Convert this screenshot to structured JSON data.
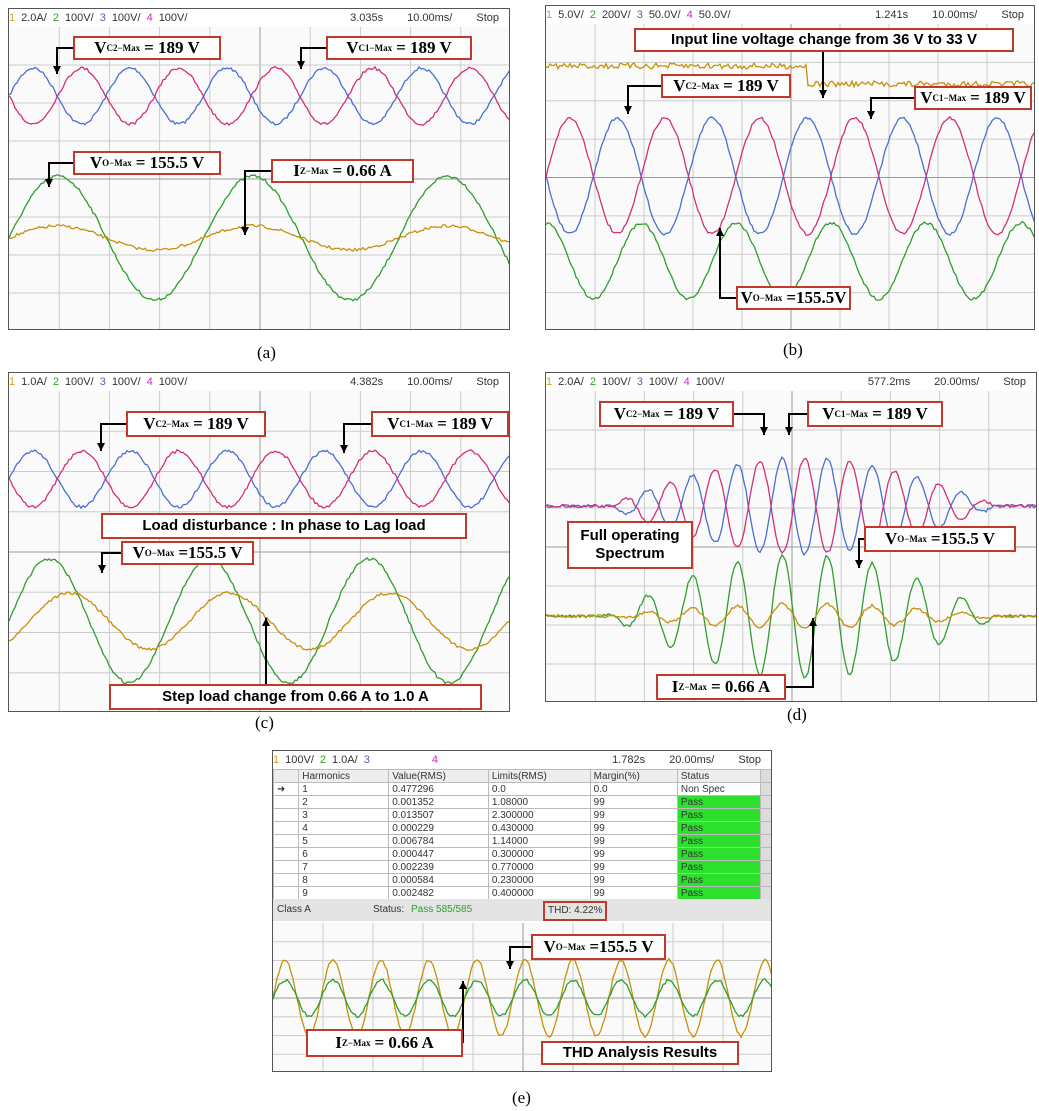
{
  "panels": [
    {
      "caption": "(a)",
      "header": {
        "channels": [
          {
            "number": "1",
            "setting": "2.0A/"
          },
          {
            "number": "2",
            "setting": "100V/"
          },
          {
            "number": "3",
            "setting": "100V/"
          },
          {
            "number": "4",
            "setting": "100V/"
          }
        ],
        "time": "3.035s",
        "timebase": "10.00ms/",
        "state": "Stop"
      },
      "annotations": [
        {
          "base": "V",
          "sub": "C2−Max",
          "text": "= 189 V"
        },
        {
          "base": "V",
          "sub": "C1−Max",
          "text": "= 189 V"
        },
        {
          "base": "V",
          "sub": "O−Max",
          "text": "= 155.5 V"
        },
        {
          "base": "I",
          "sub": "Z−Max",
          "text": "= 0.66 A"
        }
      ]
    },
    {
      "caption": "(b)",
      "header": {
        "channels": [
          {
            "number": "1",
            "setting": "5.0V/"
          },
          {
            "number": "2",
            "setting": "200V/"
          },
          {
            "number": "3",
            "setting": "50.0V/"
          },
          {
            "number": "4",
            "setting": "50.0V/"
          }
        ],
        "time": "1.241s",
        "timebase": "10.00ms/",
        "state": "Stop"
      },
      "annotations": [
        {
          "text": "Input line voltage change from 36 V to 33 V"
        },
        {
          "base": "V",
          "sub": "C2−Max",
          "text": "= 189 V"
        },
        {
          "base": "V",
          "sub": "C1−Max",
          "text": "= 189 V"
        },
        {
          "base": "V",
          "sub": "O−Max",
          "text": "=155.5V"
        }
      ]
    },
    {
      "caption": "(c)",
      "header": {
        "channels": [
          {
            "number": "1",
            "setting": "1.0A/"
          },
          {
            "number": "2",
            "setting": "100V/"
          },
          {
            "number": "3",
            "setting": "100V/"
          },
          {
            "number": "4",
            "setting": "100V/"
          }
        ],
        "time": "4.382s",
        "timebase": "10.00ms/",
        "state": "Stop"
      },
      "annotations": [
        {
          "base": "V",
          "sub": "C2−Max",
          "text": "= 189 V"
        },
        {
          "base": "V",
          "sub": "C1−Max",
          "text": "= 189 V"
        },
        {
          "text": "Load disturbance : In phase to Lag load"
        },
        {
          "base": "V",
          "sub": "O−Max",
          "text": "=155.5 V"
        },
        {
          "text": "Step load change from 0.66 A to 1.0 A"
        }
      ]
    },
    {
      "caption": "(d)",
      "header": {
        "channels": [
          {
            "number": "1",
            "setting": "2.0A/"
          },
          {
            "number": "2",
            "setting": "100V/"
          },
          {
            "number": "3",
            "setting": "100V/"
          },
          {
            "number": "4",
            "setting": "100V/"
          }
        ],
        "time": "577.2ms",
        "timebase": "20.00ms/",
        "state": "Stop"
      },
      "annotations": [
        {
          "base": "V",
          "sub": "C2−Max",
          "text": "= 189 V"
        },
        {
          "base": "V",
          "sub": "C1−Max",
          "text": "= 189 V"
        },
        {
          "text": "Full operating Spectrum"
        },
        {
          "base": "V",
          "sub": "O−Max",
          "text": "=155.5 V"
        },
        {
          "base": "I",
          "sub": "Z−Max",
          "text": "= 0.66 A"
        }
      ]
    },
    {
      "caption": "(e)",
      "header": {
        "channels": [
          {
            "number": "1",
            "setting": "100V/"
          },
          {
            "number": "2",
            "setting": "1.0A/"
          },
          {
            "number": "3"
          },
          {
            "number": "4"
          }
        ],
        "time": "1.782s",
        "timebase": "20.00ms/",
        "state": "Stop"
      },
      "annotations": [
        {
          "base": "V",
          "sub": "O−Max",
          "text": "=155.5 V"
        },
        {
          "base": "I",
          "sub": "Z−Max",
          "text": "= 0.66 A"
        },
        {
          "text": "THD Analysis Results"
        }
      ],
      "table": {
        "columns": [
          "Harmonics",
          "Value(RMS)",
          "Limits(RMS)",
          "Margin(%)",
          "Status"
        ],
        "rows": [
          [
            "1",
            "0.477296",
            "0.0",
            "0.0",
            "Non Spec"
          ],
          [
            "2",
            "0.001352",
            "1.08000",
            "99",
            "Pass"
          ],
          [
            "3",
            "0.013507",
            "2.300000",
            "99",
            "Pass"
          ],
          [
            "4",
            "0.000229",
            "0.430000",
            "99",
            "Pass"
          ],
          [
            "5",
            "0.006784",
            "1.14000",
            "99",
            "Pass"
          ],
          [
            "6",
            "0.000447",
            "0.300000",
            "99",
            "Pass"
          ],
          [
            "7",
            "0.002239",
            "0.770000",
            "99",
            "Pass"
          ],
          [
            "8",
            "0.000584",
            "0.230000",
            "99",
            "Pass"
          ],
          [
            "9",
            "0.002482",
            "0.400000",
            "99",
            "Pass"
          ]
        ]
      },
      "status_bar": {
        "class": "Class A",
        "status_label": "Status:",
        "status_value": "Pass 585/585",
        "thd": "THD: 4.22%"
      }
    }
  ]
}
